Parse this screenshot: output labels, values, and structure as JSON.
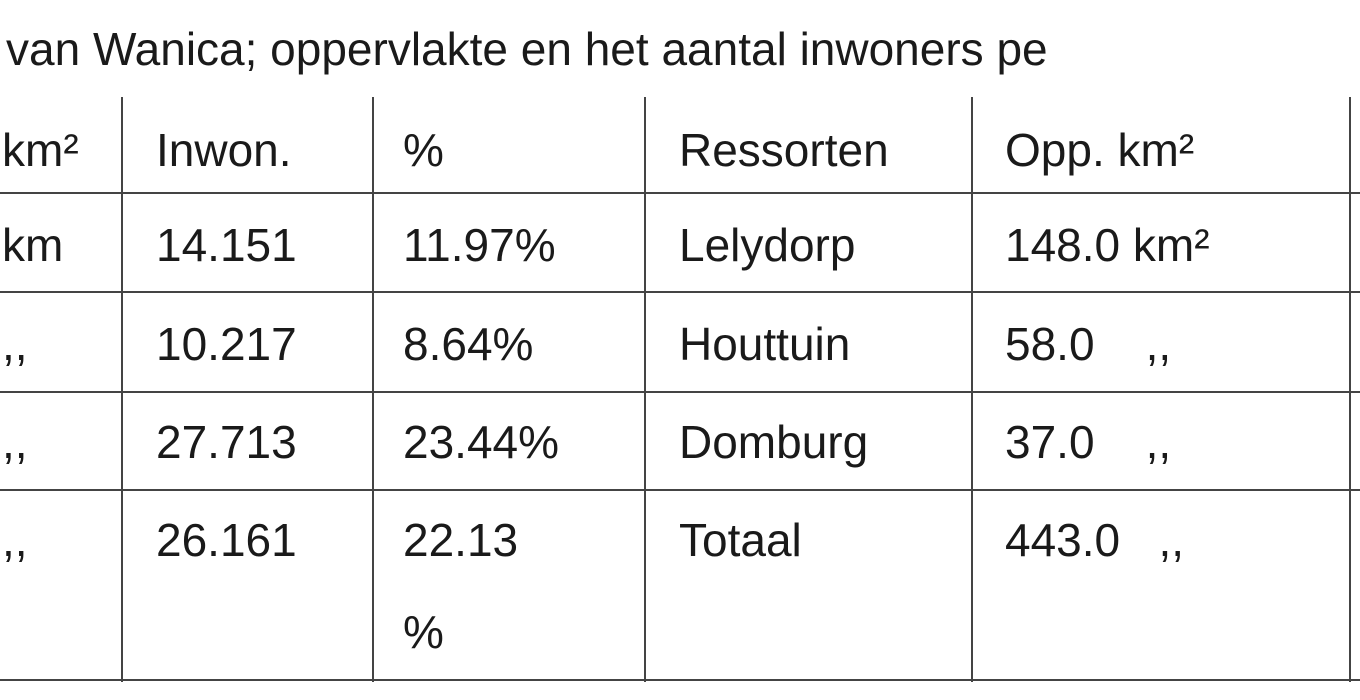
{
  "title": "van Wanica; oppervlakte en het aantal inwoners pe",
  "table": {
    "header": [
      "km²",
      "Inwon.",
      "%",
      "Ressorten",
      "Opp. km²"
    ],
    "rows": [
      [
        "km",
        "14.151",
        "11.97%",
        "Lelydorp",
        "148.0 km²"
      ],
      [
        ",,",
        "10.217",
        "8.64%",
        "Houttuin",
        "58.0    ,,"
      ],
      [
        ",,",
        "27.713",
        "23.44%",
        "Domburg",
        "37.0    ,,"
      ],
      [
        ",,",
        "26.161",
        "22.13 %",
        "Totaal",
        "443.0   ,,"
      ]
    ]
  }
}
